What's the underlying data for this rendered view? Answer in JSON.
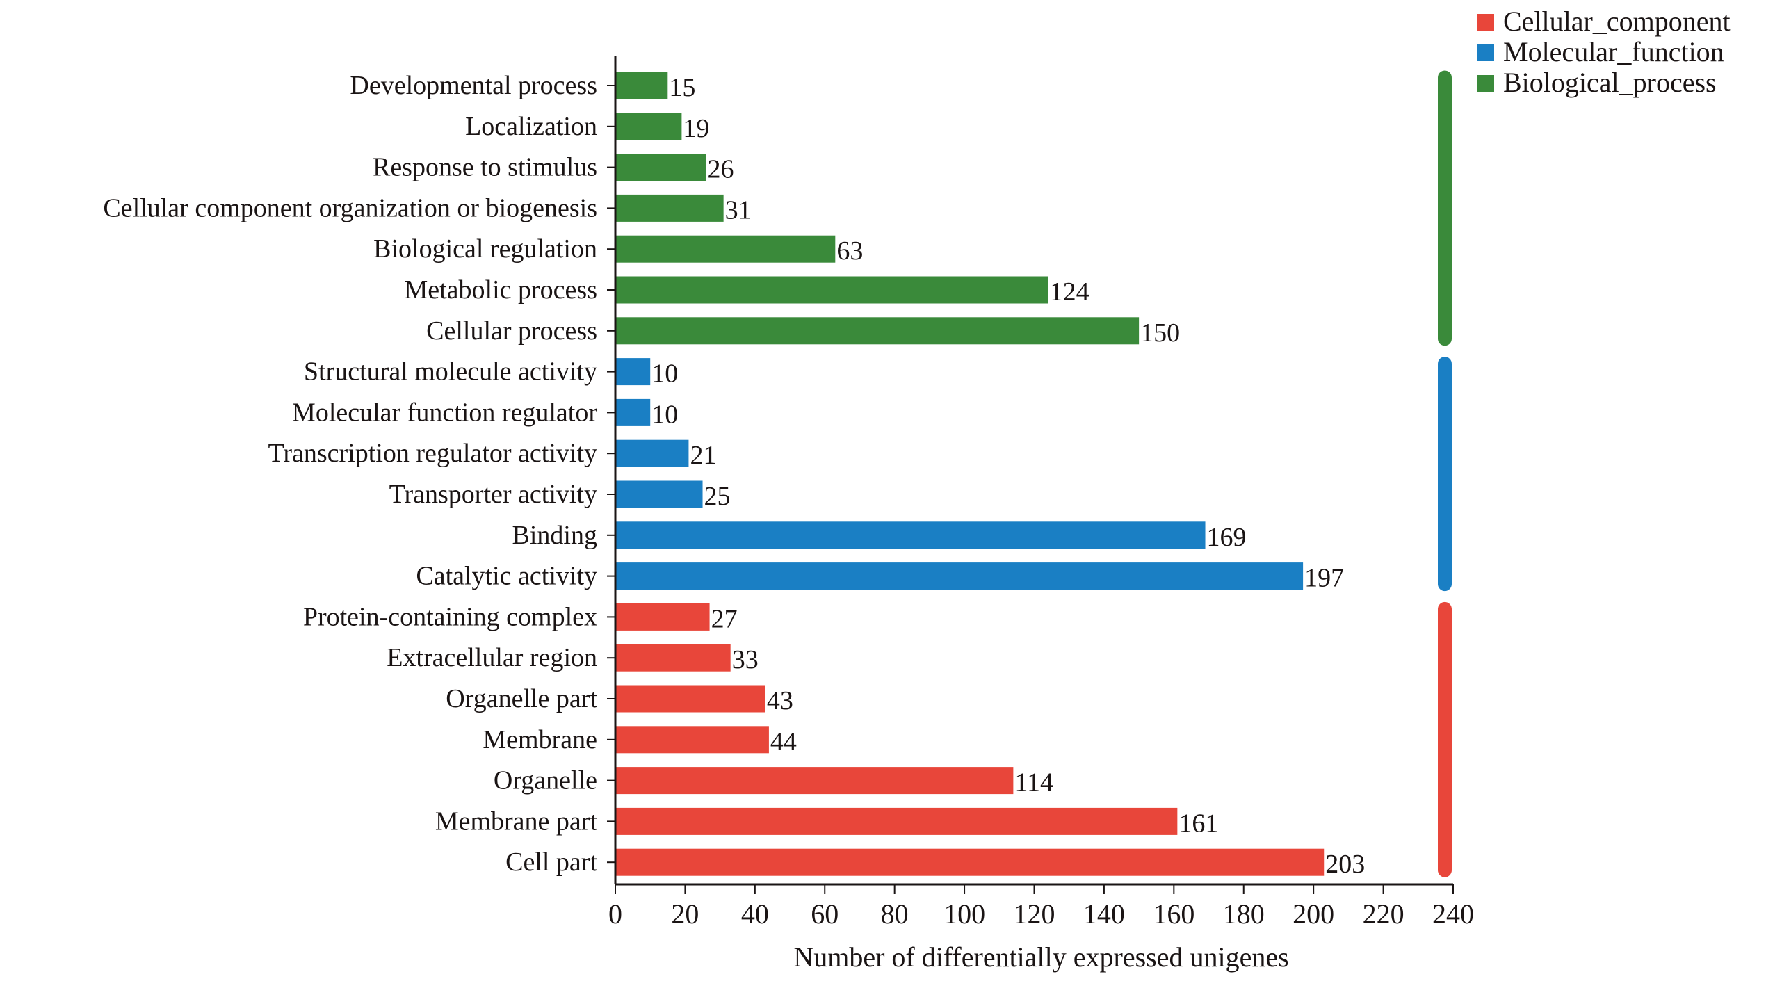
{
  "chart_data": {
    "type": "bar",
    "orientation": "horizontal",
    "xlabel": "Number of differentially expressed unigenes",
    "xlim": [
      0,
      240
    ],
    "xticks": [
      0,
      20,
      40,
      60,
      80,
      100,
      120,
      140,
      160,
      180,
      200,
      220,
      240
    ],
    "grid": false,
    "legend_position": "top-right",
    "groups": [
      {
        "name": "Cellular_component",
        "color": "#e8463a",
        "categories": [
          "Protein-containing complex",
          "Extracellular region",
          "Organelle part",
          "Membrane",
          "Organelle",
          "Membrane part",
          "Cell part"
        ],
        "values": [
          27,
          33,
          43,
          44,
          114,
          161,
          203
        ]
      },
      {
        "name": "Molecular_function",
        "color": "#1a7fc4",
        "categories": [
          "Structural molecule activity",
          "Molecular function regulator",
          "Transcription regulator activity",
          "Transporter activity",
          "Binding",
          "Catalytic activity"
        ],
        "values": [
          10,
          10,
          21,
          25,
          169,
          197
        ]
      },
      {
        "name": "Biological_process",
        "color": "#3a8a3a",
        "categories": [
          "Developmental process",
          "Localization",
          "Response to stimulus",
          "Cellular component organization or biogenesis",
          "Biological regulation",
          "Metabolic process",
          "Cellular process"
        ],
        "values": [
          15,
          19,
          26,
          31,
          63,
          124,
          150
        ]
      }
    ],
    "display_order": [
      "Biological_process",
      "Molecular_function",
      "Cellular_component"
    ]
  }
}
